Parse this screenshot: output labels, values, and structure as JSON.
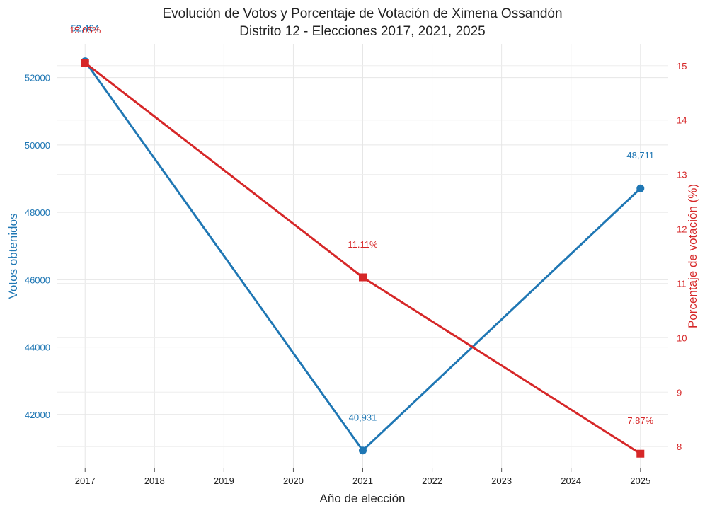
{
  "chart_data": {
    "type": "line",
    "title": "Evolución de Votos y Porcentaje de Votación de Ximena Ossandón",
    "subtitle": "Distrito 12 - Elecciones 2017, 2021, 2025",
    "xlabel": "Año de elección",
    "ylabel_left": "Votos obtenidos",
    "ylabel_right": "Porcentaje de votación (%)",
    "x_ticks": [
      "2017",
      "2018",
      "2019",
      "2020",
      "2021",
      "2022",
      "2023",
      "2024",
      "2025"
    ],
    "y_left_ticks": [
      "42000",
      "44000",
      "46000",
      "48000",
      "50000",
      "52000"
    ],
    "y_right_ticks": [
      "8",
      "9",
      "10",
      "11",
      "12",
      "13",
      "14",
      "15"
    ],
    "xlim": [
      2016.6,
      2025.4
    ],
    "ylim_left": [
      40400,
      53000
    ],
    "ylim_right": [
      7.6,
      15.4
    ],
    "grid": true,
    "colors": {
      "votes": "#1f77b4",
      "pct": "#d62728"
    },
    "series": [
      {
        "axis": "left",
        "x": [
          2017,
          2021,
          2025
        ],
        "values": [
          52484,
          40931,
          48711
        ],
        "labels": [
          "52,484",
          "40,931",
          "48,711"
        ],
        "marker": "circle"
      },
      {
        "axis": "right",
        "x": [
          2017,
          2021,
          2025
        ],
        "values": [
          15.05,
          11.11,
          7.87
        ],
        "labels": [
          "15.05%",
          "11.11%",
          "7.87%"
        ],
        "marker": "square"
      }
    ]
  }
}
